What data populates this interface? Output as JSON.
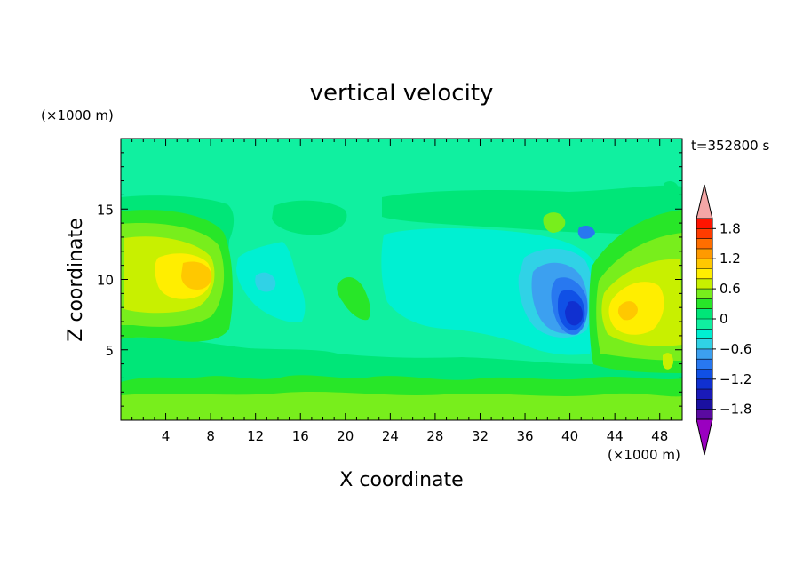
{
  "chart_data": {
    "type": "heatmap",
    "title": "vertical velocity",
    "xlabel": "X coordinate",
    "ylabel": "Z coordinate",
    "x_unit": "(×1000 m)",
    "y_unit": "(×1000 m)",
    "time_label": "t=352800 s",
    "xlim": [
      0,
      50
    ],
    "ylim": [
      0,
      20
    ],
    "x_ticks": [
      4,
      8,
      12,
      16,
      20,
      24,
      28,
      32,
      36,
      40,
      44,
      48
    ],
    "y_ticks": [
      5,
      10,
      15
    ],
    "colorbar": {
      "levels": [
        -2.0,
        -1.8,
        -1.6,
        -1.4,
        -1.2,
        -1.0,
        -0.8,
        -0.6,
        -0.4,
        -0.2,
        0.0,
        0.2,
        0.4,
        0.6,
        0.8,
        1.0,
        1.2,
        1.4,
        1.6,
        1.8,
        2.0
      ],
      "tick_labels": [
        "1.8",
        "1.2",
        "0.6",
        "0",
        "−0.6",
        "−1.2",
        "−1.8"
      ],
      "tick_values": [
        1.8,
        1.2,
        0.6,
        0.0,
        -0.6,
        -1.2,
        -1.8
      ],
      "colors": [
        "#5a0aa0",
        "#1a10a0",
        "#1a1ab8",
        "#1030d0",
        "#1050e6",
        "#2878f0",
        "#3ca0f0",
        "#30d2e6",
        "#00f0d2",
        "#10f0a0",
        "#00e678",
        "#28e628",
        "#78ee1c",
        "#c8f000",
        "#ffee00",
        "#ffc800",
        "#ff9a00",
        "#ff6e00",
        "#ff3c00",
        "#ff1400"
      ],
      "over_color": "#f4a6a6",
      "under_color": "#9a00c0"
    },
    "features": [
      {
        "x": 6.8,
        "z": 10.3,
        "value": 1.0
      },
      {
        "x": 44.5,
        "z": 7.8,
        "value": 0.9
      },
      {
        "x": 40.0,
        "z": 7.8,
        "value": -1.3
      },
      {
        "x": 13.0,
        "z": 10.0,
        "value": -0.3
      },
      {
        "x": 30.0,
        "z": 10.0,
        "value": -0.4
      },
      {
        "x": 16.0,
        "z": 15.5,
        "value": 0.2
      }
    ]
  }
}
